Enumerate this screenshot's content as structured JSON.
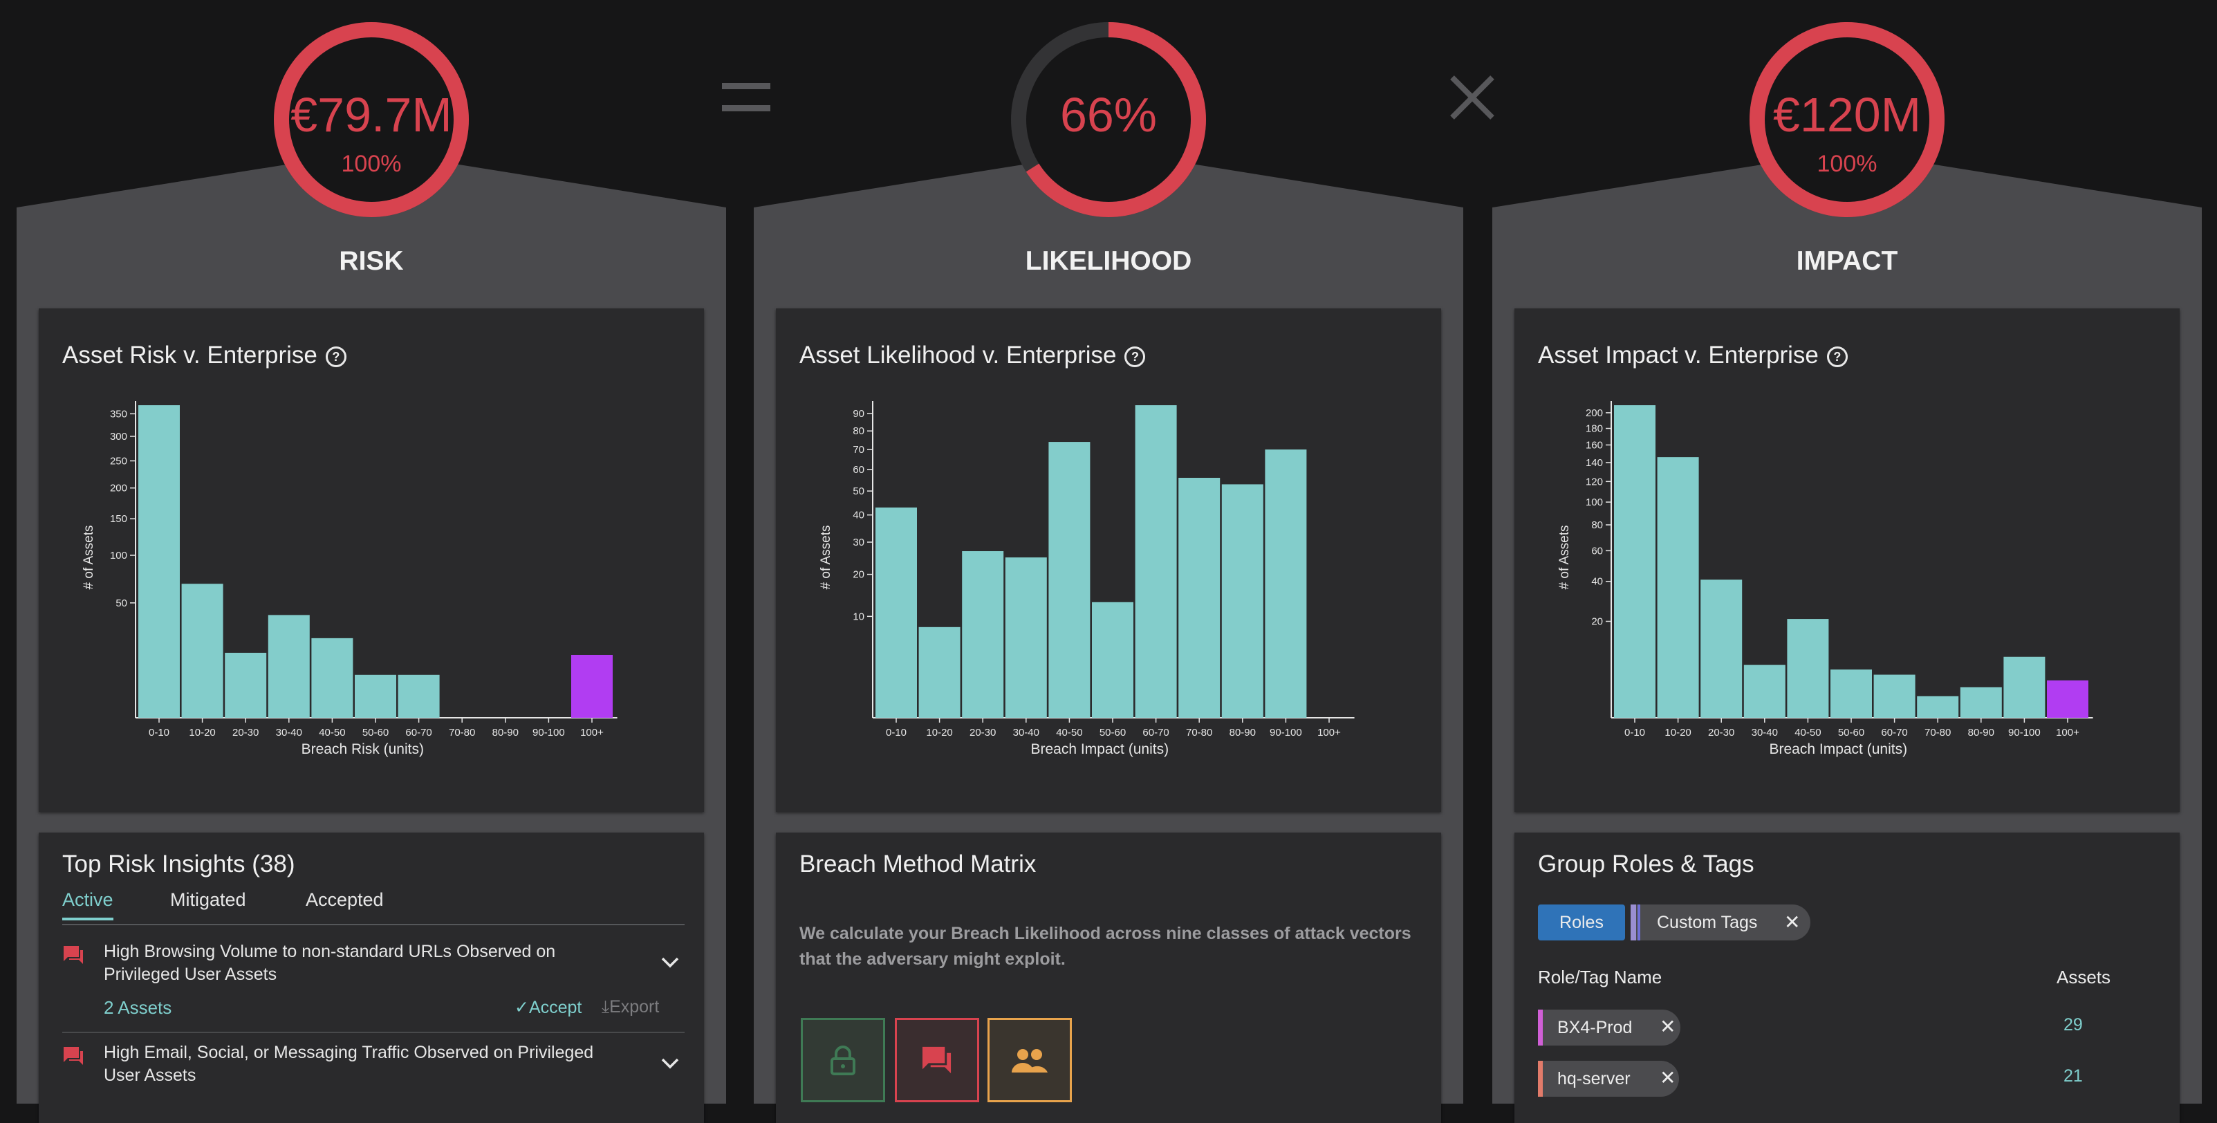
{
  "colors": {
    "accent": "#7fcfcd",
    "danger": "#d8434f",
    "highlight": "#b13df2",
    "bar": "#83cdcb"
  },
  "operators": {
    "equals": "=",
    "times": "×"
  },
  "columns": [
    {
      "id": "risk",
      "ring_value": "€79.7M",
      "ring_pct": "100%",
      "ring_fraction": 1.0,
      "title": "RISK",
      "chart_title": "Asset Risk v. Enterprise"
    },
    {
      "id": "likelihood",
      "ring_value": "66%",
      "ring_pct": "",
      "ring_fraction": 0.66,
      "title": "LIKELIHOOD",
      "chart_title": "Asset Likelihood v. Enterprise"
    },
    {
      "id": "impact",
      "ring_value": "€120M",
      "ring_pct": "100%",
      "ring_fraction": 1.0,
      "title": "IMPACT",
      "chart_title": "Asset Impact v. Enterprise"
    }
  ],
  "chart_data": [
    {
      "type": "bar",
      "title": "Asset Risk v. Enterprise",
      "xlabel": "Breach Risk (units)",
      "ylabel": "# of Assets",
      "scale": "sqrt",
      "categories": [
        "0-10",
        "10-20",
        "20-30",
        "30-40",
        "40-50",
        "50-60",
        "60-70",
        "70-80",
        "80-90",
        "90-100",
        "100+"
      ],
      "values": [
        370,
        68,
        16,
        40,
        24,
        7,
        7,
        0,
        0,
        0,
        15
      ],
      "highlight_index": 10,
      "yticks": [
        50,
        100,
        150,
        200,
        250,
        300,
        350
      ],
      "ylim": [
        0,
        370
      ]
    },
    {
      "type": "bar",
      "title": "Asset Likelihood v. Enterprise",
      "xlabel": "Breach Impact (units)",
      "ylabel": "# of Assets",
      "scale": "sqrt",
      "categories": [
        "0-10",
        "10-20",
        "20-30",
        "30-40",
        "40-50",
        "50-60",
        "60-70",
        "70-80",
        "80-90",
        "90-100",
        "100+"
      ],
      "values": [
        43,
        8,
        27,
        25,
        74,
        13,
        95,
        56,
        53,
        70,
        0
      ],
      "highlight_index": -1,
      "yticks": [
        10,
        20,
        30,
        40,
        50,
        60,
        70,
        80,
        90
      ],
      "ylim": [
        0,
        95
      ]
    },
    {
      "type": "bar",
      "title": "Asset Impact v. Enterprise",
      "xlabel": "Breach Impact (units)",
      "ylabel": "# of Assets",
      "scale": "sqrt",
      "categories": [
        "0-10",
        "10-20",
        "20-30",
        "30-40",
        "40-50",
        "50-60",
        "60-70",
        "70-80",
        "80-90",
        "90-100",
        "100+"
      ],
      "values": [
        210,
        146,
        41,
        6,
        21,
        5,
        4,
        1,
        2,
        8,
        3
      ],
      "highlight_index": 10,
      "yticks": [
        20,
        40,
        60,
        80,
        100,
        120,
        140,
        160,
        180,
        200
      ],
      "ylim": [
        0,
        210
      ]
    }
  ],
  "insights": {
    "title": "Top Risk Insights (38)",
    "tabs": [
      "Active",
      "Mitigated",
      "Accepted"
    ],
    "items": [
      {
        "text": "High Browsing Volume to non-standard URLs Observed on Privileged User Assets",
        "assets": "2 Assets",
        "accept": "Accept",
        "export": "Export"
      },
      {
        "text": "High Email, Social, or Messaging Traffic Observed on Privileged User Assets"
      }
    ]
  },
  "matrix": {
    "title": "Breach Method Matrix",
    "description": "We calculate your Breach Likelihood across nine classes of attack vectors that the adversary might exploit.",
    "boxes": [
      {
        "icon": "lock-icon",
        "color": "#3f7a55"
      },
      {
        "icon": "chat-icon",
        "color": "#d8434f"
      },
      {
        "icon": "users-icon",
        "color": "#e8a34c"
      }
    ]
  },
  "groups": {
    "title": "Group Roles & Tags",
    "roles_label": "Roles",
    "custom_tags_label": "Custom Tags",
    "col_name": "Role/Tag Name",
    "col_assets": "Assets",
    "rows": [
      {
        "name": "BX4-Prod",
        "count": "29",
        "color": "#d05fd6"
      },
      {
        "name": "hq-server",
        "count": "21",
        "color": "#e27b6a"
      }
    ]
  }
}
